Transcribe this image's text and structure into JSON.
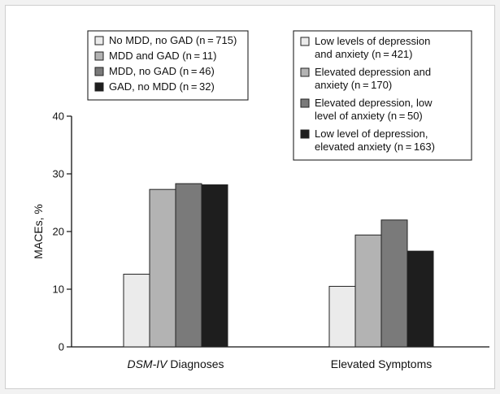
{
  "chart_data": {
    "type": "bar",
    "ylabel": "MACEs, %",
    "ylim": [
      0,
      40
    ],
    "yticks": [
      0,
      10,
      20,
      30,
      40
    ],
    "grid": false,
    "groups": [
      {
        "category_italic": "DSM-IV",
        "category_rest": " Diagnoses",
        "legend_placement": "top-left",
        "series": [
          {
            "name": "No MDD, no GAD (n = 715)",
            "lines": [
              "No MDD, no GAD (n = 715)"
            ],
            "value": 12.6,
            "color": "#ebebeb"
          },
          {
            "name": "MDD and GAD (n = 11)",
            "lines": [
              "MDD and GAD (n = 11)"
            ],
            "value": 27.3,
            "color": "#b3b3b3"
          },
          {
            "name": "MDD, no GAD (n = 46)",
            "lines": [
              "MDD, no GAD (n = 46)"
            ],
            "value": 28.3,
            "color": "#7a7a7a"
          },
          {
            "name": "GAD, no MDD (n = 32)",
            "lines": [
              "GAD, no MDD (n = 32)"
            ],
            "value": 28.1,
            "color": "#1e1e1e"
          }
        ]
      },
      {
        "category_italic": "",
        "category_rest": "Elevated Symptoms",
        "legend_placement": "top-right",
        "series": [
          {
            "name": "Low levels of depression and anxiety (n = 421)",
            "lines": [
              "Low levels of depression",
              "and anxiety (n = 421)"
            ],
            "value": 10.5,
            "color": "#ebebeb"
          },
          {
            "name": "Elevated depression and anxiety (n = 170)",
            "lines": [
              "Elevated depression and",
              "anxiety (n = 170)"
            ],
            "value": 19.4,
            "color": "#b3b3b3"
          },
          {
            "name": "Elevated depression, low level of anxiety (n = 50)",
            "lines": [
              "Elevated depression, low",
              "level of anxiety (n = 50)"
            ],
            "value": 22.0,
            "color": "#7a7a7a"
          },
          {
            "name": "Low level of depression, elevated anxiety (n = 163)",
            "lines": [
              "Low level of depression,",
              "elevated anxiety (n = 163)"
            ],
            "value": 16.6,
            "color": "#1e1e1e"
          }
        ]
      }
    ]
  }
}
